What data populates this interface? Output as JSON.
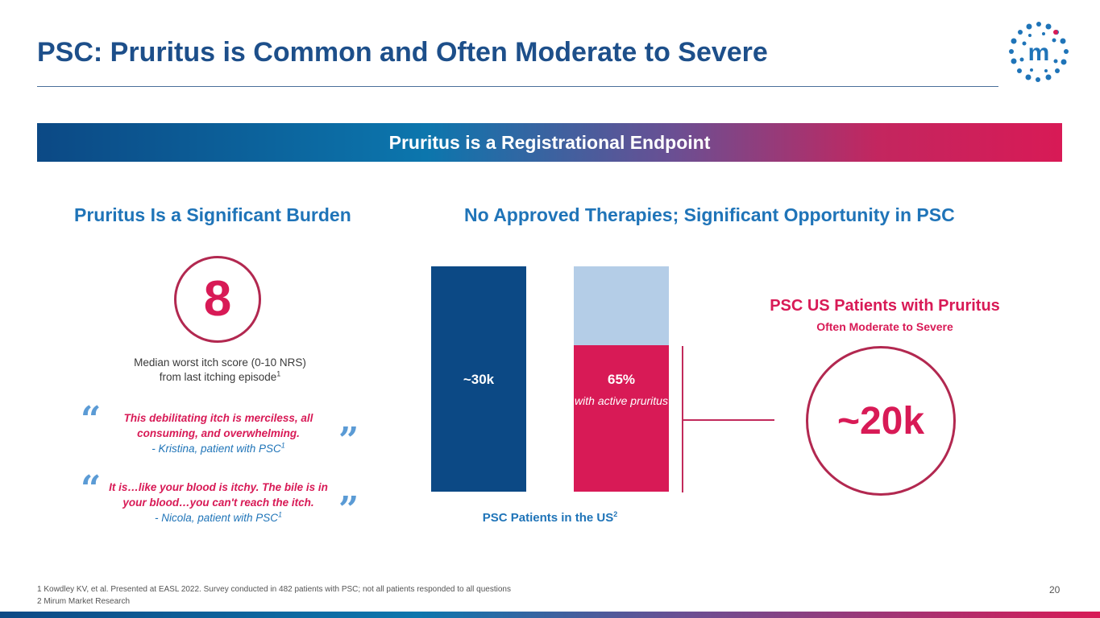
{
  "slide": {
    "title": "PSC: Pruritus is Common and Often Moderate to Severe",
    "page_number": "20"
  },
  "banner": {
    "text": "Pruritus is a Registrational Endpoint"
  },
  "left": {
    "heading": "Pruritus Is a Significant Burden",
    "score_value": "8",
    "score_caption_line1": "Median worst itch score (0-10 NRS)",
    "score_caption_line2": "from last itching episode",
    "score_caption_ref": "1",
    "quotes": [
      {
        "text": "This debilitating itch is merciless, all consuming, and overwhelming.",
        "author": "- Kristina, patient with PSC",
        "ref": "1"
      },
      {
        "text": "It is…like your blood is itchy.  The bile is in your blood…you can't reach the itch.",
        "author": "- Nicola, patient with PSC",
        "ref": "1"
      }
    ],
    "quote_open": "“",
    "quote_close": "”"
  },
  "right": {
    "heading": "No Approved Therapies; Significant Opportunity in PSC",
    "pruritus_title": "PSC US Patients with Pruritus",
    "pruritus_subtitle": "Often Moderate to Severe",
    "pruritus_value": "~20k"
  },
  "chart_data": {
    "type": "bar",
    "title": "",
    "xlabel": "PSC Patients in the US",
    "xlabel_ref": "2",
    "categories": [
      "PSC patients",
      "with active pruritus"
    ],
    "bars": [
      {
        "label": "~30k",
        "value": 100
      },
      {
        "label": "65%",
        "sublabel": "with active pruritus",
        "value": 65,
        "stacked_total": 100
      }
    ],
    "units": "percent of PSC patients"
  },
  "footnotes": [
    "1 Kowdley KV, et al. Presented at EASL 2022. Survey conducted in 482 patients with PSC; not all patients responded to all questions",
    "2 Mirum Market Research"
  ],
  "colors": {
    "navy": "#0c4985",
    "blue": "#1f74b8",
    "magenta": "#d81a56",
    "light_blue": "#b4cde7"
  },
  "logo": {
    "letter": "m",
    "icon": "mirum-logo-icon"
  }
}
